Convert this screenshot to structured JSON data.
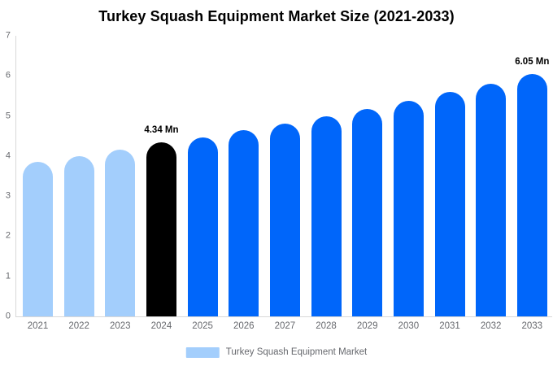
{
  "chart_data": {
    "type": "bar",
    "title": "Turkey Squash Equipment Market Size (2021-2033)",
    "xlabel": "",
    "ylabel": "",
    "unit": "Mn",
    "categories": [
      "2021",
      "2022",
      "2023",
      "2024",
      "2025",
      "2026",
      "2027",
      "2028",
      "2029",
      "2030",
      "2031",
      "2032",
      "2033"
    ],
    "values": [
      3.85,
      4.0,
      4.15,
      4.34,
      4.46,
      4.64,
      4.81,
      5.0,
      5.18,
      5.38,
      5.59,
      5.81,
      6.05
    ],
    "bar_color_keys": [
      "light_blue",
      "light_blue",
      "light_blue",
      "black",
      "blue",
      "blue",
      "blue",
      "blue",
      "blue",
      "blue",
      "blue",
      "blue",
      "blue"
    ],
    "palette": {
      "light_blue": "#a3cefc",
      "blue": "#0066fa",
      "black": "#000000"
    },
    "ylim": [
      0,
      7
    ],
    "yticks": [
      0,
      1,
      2,
      3,
      4,
      5,
      6,
      7
    ],
    "grid": false,
    "annotations": [
      {
        "index": 3,
        "text": "4.34 Mn"
      },
      {
        "index": 12,
        "text": "6.05 Mn"
      }
    ],
    "legend_position": "bottom",
    "legend": {
      "label": "Turkey Squash Equipment Market",
      "swatch_color_key": "light_blue"
    },
    "axis_line_color": "#d8d8d8",
    "tick_text_color": "#67696e"
  }
}
